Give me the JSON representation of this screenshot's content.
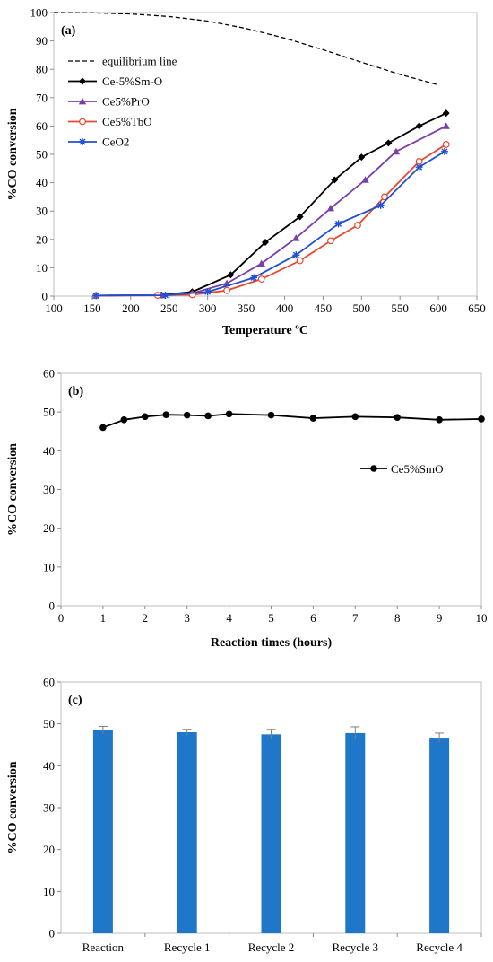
{
  "chart_data": [
    {
      "type": "line",
      "panel_label": "(a)",
      "xlabel": "Temperature ºC",
      "ylabel": "%CO conversion",
      "xlim": [
        100,
        650
      ],
      "ylim": [
        0,
        100
      ],
      "xticks": [
        100,
        150,
        200,
        250,
        300,
        350,
        400,
        450,
        500,
        550,
        600,
        650
      ],
      "yticks": [
        0,
        10,
        20,
        30,
        40,
        50,
        60,
        70,
        80,
        90,
        100
      ],
      "legend_position": "top-left",
      "grid": false,
      "series": [
        {
          "name": "equilibrium line",
          "color": "#000000",
          "style": "dashed",
          "marker": "none",
          "x": [
            100,
            150,
            200,
            250,
            300,
            350,
            400,
            450,
            500,
            550,
            600
          ],
          "y": [
            100,
            99.9,
            99.5,
            98.6,
            97,
            94.4,
            91,
            86.9,
            82.5,
            78.2,
            74.5
          ]
        },
        {
          "name": "Ce-5%Sm-O",
          "color": "#000000",
          "marker": "diamond",
          "x": [
            155,
            240,
            280,
            330,
            375,
            420,
            465,
            500,
            535,
            575,
            610
          ],
          "y": [
            0.2,
            0.4,
            1.5,
            7.5,
            19,
            28,
            41,
            49,
            54,
            60,
            64.5
          ]
        },
        {
          "name": "Ce5%PrO",
          "color": "#7b3fa8",
          "marker": "triangle",
          "x": [
            155,
            240,
            280,
            325,
            370,
            415,
            460,
            505,
            545,
            610
          ],
          "y": [
            0.2,
            0.3,
            1,
            4.5,
            11.5,
            20.5,
            31,
            41,
            51,
            60
          ]
        },
        {
          "name": "Ce5%TbO",
          "color": "#e8492e",
          "marker": "circle",
          "x": [
            155,
            235,
            280,
            325,
            370,
            420,
            460,
            495,
            530,
            575,
            610
          ],
          "y": [
            0.2,
            0.3,
            0.5,
            2,
            6,
            12.5,
            19.5,
            25,
            35,
            47.5,
            53.5
          ]
        },
        {
          "name": "CeO2",
          "color": "#1f4fd6",
          "marker": "star",
          "x": [
            155,
            245,
            300,
            360,
            415,
            470,
            525,
            575,
            608
          ],
          "y": [
            0.2,
            0.3,
            1.5,
            6.5,
            14.5,
            25.5,
            32,
            45.5,
            51
          ]
        }
      ]
    },
    {
      "type": "line",
      "panel_label": "(b)",
      "xlabel": "Reaction times (hours)",
      "ylabel": "%CO conversion",
      "xlim": [
        0,
        10
      ],
      "ylim": [
        0,
        60
      ],
      "xticks": [
        0,
        1,
        2,
        3,
        4,
        5,
        6,
        7,
        8,
        9,
        10
      ],
      "yticks": [
        0,
        10,
        20,
        30,
        40,
        50,
        60
      ],
      "legend_position": "right",
      "grid": false,
      "series": [
        {
          "name": "Ce5%SmO",
          "color": "#000000",
          "marker": "circle",
          "x": [
            1,
            1.5,
            2,
            2.5,
            3,
            3.5,
            4,
            5,
            6,
            7,
            8,
            9,
            10
          ],
          "y": [
            46,
            48,
            48.8,
            49.3,
            49.2,
            49,
            49.5,
            49.2,
            48.4,
            48.8,
            48.6,
            48,
            48.2
          ]
        }
      ]
    },
    {
      "type": "bar",
      "panel_label": "(c)",
      "ylabel": "%CO conversion",
      "ylim": [
        0,
        60
      ],
      "yticks": [
        0,
        10,
        20,
        30,
        40,
        50,
        60
      ],
      "categories": [
        "Reaction",
        "Recycle 1",
        "Recycle 2",
        "Recycle 3",
        "Recycle 4"
      ],
      "values": [
        48.5,
        48,
        47.5,
        47.8,
        46.7
      ],
      "errors": [
        0.9,
        0.7,
        1.2,
        1.5,
        1.1
      ],
      "color": "#1f77c9",
      "grid": false
    }
  ]
}
